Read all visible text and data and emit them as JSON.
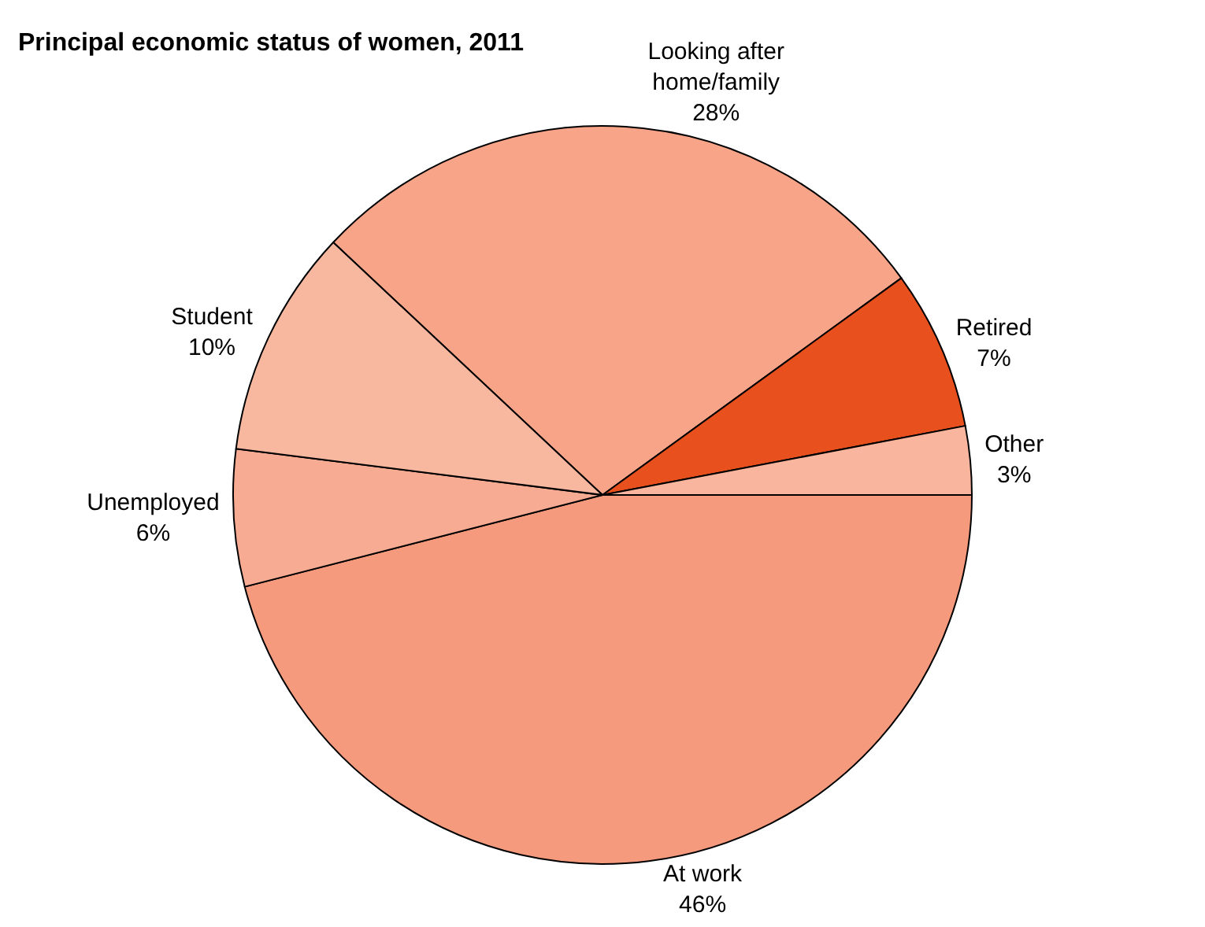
{
  "chart_data": {
    "type": "pie",
    "title": "Principal economic status of women, 2011",
    "categories": [
      "Looking after home/family",
      "Retired",
      "Other",
      "At work",
      "Unemployed",
      "Student"
    ],
    "values": [
      28,
      7,
      3,
      46,
      6,
      10
    ],
    "value_labels": [
      "28%",
      "7%",
      "3%",
      "46%",
      "6%",
      "10%"
    ],
    "colors": [
      "#f8a488",
      "#e8501e",
      "#f9b59d",
      "#f59a7c",
      "#f7ab92",
      "#f8b8a0"
    ],
    "legend": false
  }
}
